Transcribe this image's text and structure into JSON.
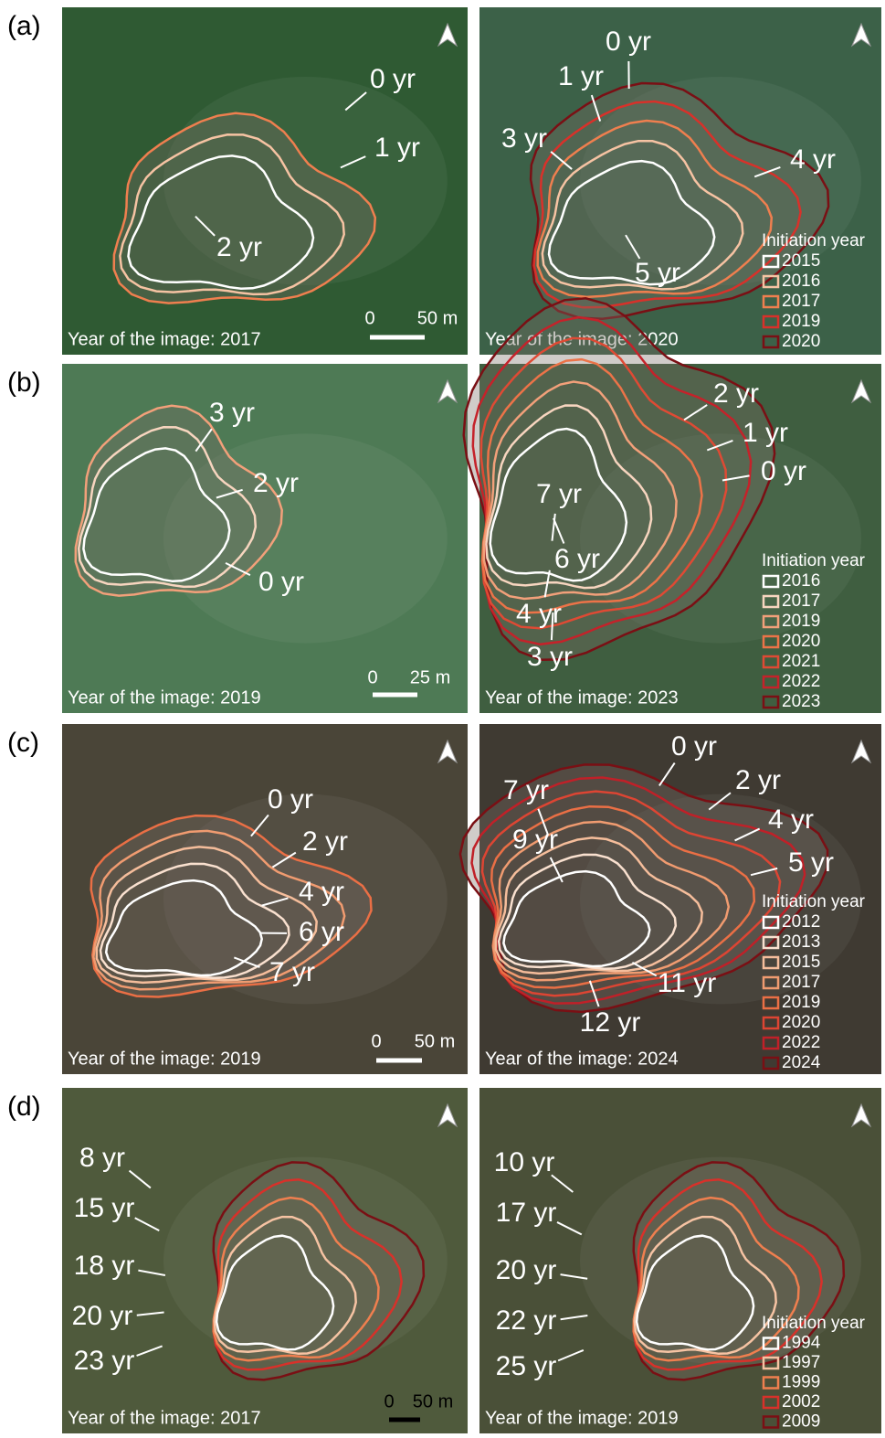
{
  "panels": [
    {
      "label": "(a)",
      "images": [
        {
          "caption": "Year of the image: 2017",
          "labels": [
            "0 yr",
            "1 yr",
            "2 yr"
          ],
          "scale": {
            "start": "0",
            "end": "50 m"
          }
        },
        {
          "caption": "Year of the image: 2020",
          "labels": [
            "0 yr",
            "1 yr",
            "3 yr",
            "4 yr",
            "5 yr"
          ],
          "legend": {
            "title": "Initiation year",
            "items": [
              {
                "year": "2015",
                "color": "#ffffff"
              },
              {
                "year": "2016",
                "color": "#f6c3a3"
              },
              {
                "year": "2017",
                "color": "#ef7f4f"
              },
              {
                "year": "2019",
                "color": "#d8312a"
              },
              {
                "year": "2020",
                "color": "#7a0f14"
              }
            ]
          }
        }
      ]
    },
    {
      "label": "(b)",
      "images": [
        {
          "caption": "Year of the image: 2019",
          "labels": [
            "3 yr",
            "2 yr",
            "0 yr"
          ],
          "scale": {
            "start": "0",
            "end": "25 m"
          }
        },
        {
          "caption": "Year of the image: 2023",
          "labels": [
            "2 yr",
            "1 yr",
            "0 yr",
            "7 yr",
            "6 yr",
            "4 yr",
            "3 yr"
          ],
          "legend": {
            "title": "Initiation year",
            "items": [
              {
                "year": "2016",
                "color": "#ffffff"
              },
              {
                "year": "2017",
                "color": "#f7d5bf"
              },
              {
                "year": "2019",
                "color": "#f2a07a"
              },
              {
                "year": "2020",
                "color": "#ec7348"
              },
              {
                "year": "2021",
                "color": "#df4a34"
              },
              {
                "year": "2022",
                "color": "#c5222a"
              },
              {
                "year": "2023",
                "color": "#7a0f14"
              }
            ]
          }
        }
      ]
    },
    {
      "label": "(c)",
      "images": [
        {
          "caption": "Year of the image: 2019",
          "labels": [
            "0 yr",
            "2 yr",
            "4 yr",
            "6 yr",
            "7 yr"
          ],
          "scale": {
            "start": "0",
            "end": "50 m"
          }
        },
        {
          "caption": "Year of the image: 2024",
          "labels": [
            "0 yr",
            "2 yr",
            "4 yr",
            "5 yr",
            "7 yr",
            "9 yr",
            "11 yr",
            "12 yr"
          ],
          "legend": {
            "title": "Initiation year",
            "items": [
              {
                "year": "2012",
                "color": "#ffffff"
              },
              {
                "year": "2013",
                "color": "#f9e0cf"
              },
              {
                "year": "2015",
                "color": "#f5bd9b"
              },
              {
                "year": "2017",
                "color": "#f09b70"
              },
              {
                "year": "2019",
                "color": "#ea6f45"
              },
              {
                "year": "2020",
                "color": "#dd4533"
              },
              {
                "year": "2022",
                "color": "#c02028"
              },
              {
                "year": "2024",
                "color": "#7a0f14"
              }
            ]
          }
        }
      ]
    },
    {
      "label": "(d)",
      "images": [
        {
          "caption": "Year of the image: 2017",
          "labels": [
            "8 yr",
            "15 yr",
            "18 yr",
            "20 yr",
            "23 yr"
          ],
          "scale": {
            "start": "0",
            "end": "50 m"
          }
        },
        {
          "caption": "Year of the image: 2019",
          "labels": [
            "10 yr",
            "17 yr",
            "20 yr",
            "22 yr",
            "25 yr"
          ],
          "legend": {
            "title": "Initiation year",
            "items": [
              {
                "year": "1994",
                "color": "#ffffff"
              },
              {
                "year": "1997",
                "color": "#f6c3a3"
              },
              {
                "year": "1999",
                "color": "#ef7f4f"
              },
              {
                "year": "2002",
                "color": "#d8312a"
              },
              {
                "year": "2009",
                "color": "#7a0f14"
              }
            ]
          }
        }
      ]
    }
  ]
}
